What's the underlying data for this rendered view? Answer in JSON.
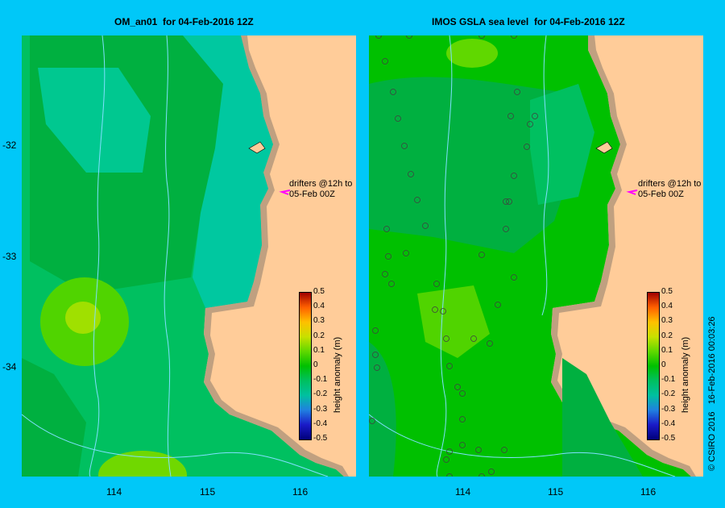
{
  "panels": [
    {
      "title": "OM_an01  for 04-Feb-2016 12Z",
      "drifter_label": "drifters @12h to\n05-Feb 00Z"
    },
    {
      "title": "IMOS GSLA sea level  for 04-Feb-2016 12Z",
      "drifter_label": "drifters @12h to\n05-Feb 00Z"
    }
  ],
  "axes": {
    "lat_ticks": [
      "-32",
      "-33",
      "-34"
    ],
    "lon_ticks": [
      "114",
      "115",
      "116"
    ]
  },
  "colorbar": {
    "label": "height anomaly (m)",
    "ticks": [
      "0.5",
      "0.4",
      "0.3",
      "0.2",
      "0.1",
      "0",
      "-0.1",
      "-0.2",
      "-0.3",
      "-0.4",
      "-0.5"
    ],
    "range": [
      -0.5,
      0.5
    ],
    "colormap": [
      "#00007a",
      "#1a1ac8",
      "#2080e0",
      "#00c0a0",
      "#00c060",
      "#00c000",
      "#60d800",
      "#c8e000",
      "#ffc000",
      "#ff6000",
      "#a00000"
    ]
  },
  "credit": "© CSIRO 2016   16-Feb-2016 00:03:26",
  "colors": {
    "background": "#00c8f8",
    "land": "#ffcc99",
    "shelf": "#c0a080",
    "contour": "#80e0ff",
    "drifter_arrow": "#ff00ff"
  }
}
